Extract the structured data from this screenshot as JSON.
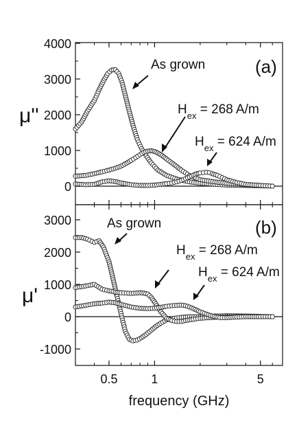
{
  "figure": {
    "xlabel": "frequency (GHz)",
    "xticks": [
      "0.5",
      "1",
      "5"
    ]
  },
  "chart_data": [
    {
      "type": "scatter",
      "panel_label": "(a)",
      "ylabel": "μ''",
      "x_scale": "log",
      "xlim": [
        0.3,
        7
      ],
      "ylim": [
        -500,
        4000
      ],
      "yticks": [
        0,
        1000,
        2000,
        3000,
        4000
      ],
      "ytick_labels": [
        "0",
        "1000",
        "2000",
        "3000",
        "4000"
      ],
      "zero_line": true,
      "annotations": [
        {
          "text": "As grown",
          "sub": ""
        },
        {
          "text": "H",
          "sub": "ex",
          "suffix": " = 268 A/m"
        },
        {
          "text": "H",
          "sub": "ex",
          "suffix": " = 624 A/m"
        }
      ],
      "series": [
        {
          "x": [
            0.3,
            0.33,
            0.36,
            0.4,
            0.43,
            0.46,
            0.49,
            0.52,
            0.55,
            0.58,
            0.61,
            0.64,
            0.68,
            0.72,
            0.77,
            0.82,
            0.88,
            0.95,
            1.05,
            1.2,
            1.4,
            1.7,
            2.0,
            2.5,
            3.0,
            4.0,
            5.0,
            6.0
          ],
          "y": [
            1600,
            1800,
            2100,
            2400,
            2700,
            2950,
            3150,
            3250,
            3260,
            3150,
            2900,
            2550,
            2100,
            1700,
            1300,
            1050,
            850,
            650,
            450,
            300,
            200,
            120,
            80,
            50,
            30,
            20,
            10,
            0
          ]
        },
        {
          "x": [
            0.3,
            0.35,
            0.4,
            0.45,
            0.5,
            0.55,
            0.6,
            0.65,
            0.7,
            0.75,
            0.8,
            0.85,
            0.9,
            0.95,
            1.0,
            1.05,
            1.1,
            1.15,
            1.2,
            1.3,
            1.4,
            1.5,
            1.7,
            2.0,
            2.5,
            3.0,
            4.0,
            5.0,
            6.0
          ],
          "y": [
            280,
            300,
            350,
            400,
            450,
            500,
            560,
            640,
            720,
            800,
            880,
            950,
            980,
            990,
            970,
            930,
            880,
            820,
            760,
            650,
            550,
            450,
            300,
            180,
            120,
            80,
            40,
            20,
            0
          ]
        },
        {
          "x": [
            0.3,
            0.35,
            0.4,
            0.45,
            0.5,
            0.55,
            0.6,
            0.7,
            0.8,
            0.9,
            1.0,
            1.1,
            1.2,
            1.3,
            1.4,
            1.5,
            1.6,
            1.7,
            1.8,
            1.9,
            2.0,
            2.1,
            2.2,
            2.3,
            2.4,
            2.6,
            2.8,
            3.0,
            3.5,
            4.0,
            5.0,
            6.0
          ],
          "y": [
            60,
            40,
            50,
            120,
            150,
            130,
            90,
            40,
            20,
            20,
            30,
            50,
            70,
            90,
            120,
            160,
            210,
            260,
            310,
            350,
            370,
            380,
            390,
            380,
            350,
            300,
            240,
            180,
            100,
            50,
            20,
            0
          ]
        }
      ]
    },
    {
      "type": "scatter",
      "panel_label": "(b)",
      "ylabel": "μ'",
      "x_scale": "log",
      "xlim": [
        0.3,
        7
      ],
      "ylim": [
        -1500,
        3500
      ],
      "yticks": [
        -1000,
        0,
        1000,
        2000,
        3000
      ],
      "ytick_labels": [
        "-1000",
        "0",
        "1000",
        "2000",
        "3000"
      ],
      "zero_line": true,
      "annotations": [
        {
          "text": "As grown",
          "sub": ""
        },
        {
          "text": "H",
          "sub": "ex",
          "suffix": " = 268 A/m"
        },
        {
          "text": "H",
          "sub": "ex",
          "suffix": " = 624 A/m"
        }
      ],
      "series": [
        {
          "x": [
            0.3,
            0.33,
            0.36,
            0.4,
            0.43,
            0.46,
            0.5,
            0.53,
            0.56,
            0.6,
            0.64,
            0.68,
            0.72,
            0.77,
            0.82,
            0.88,
            0.95,
            1.02,
            1.1,
            1.2,
            1.35,
            1.5,
            1.7,
            2.0,
            2.5,
            3.0,
            4.0,
            5.0,
            6.0
          ],
          "y": [
            2450,
            2450,
            2400,
            2300,
            2350,
            2150,
            1700,
            1200,
            700,
            100,
            -450,
            -700,
            -750,
            -720,
            -650,
            -550,
            -420,
            -300,
            -200,
            -100,
            -50,
            -20,
            0,
            0,
            20,
            30,
            20,
            10,
            0
          ]
        },
        {
          "x": [
            0.3,
            0.35,
            0.4,
            0.45,
            0.5,
            0.55,
            0.6,
            0.65,
            0.7,
            0.75,
            0.8,
            0.85,
            0.9,
            0.95,
            1.0,
            1.05,
            1.1,
            1.2,
            1.3,
            1.4,
            1.5,
            1.6,
            1.8,
            2.0,
            2.5,
            3.0,
            4.0,
            5.0,
            6.0
          ],
          "y": [
            900,
            950,
            1000,
            850,
            800,
            760,
            740,
            730,
            720,
            730,
            740,
            730,
            700,
            600,
            450,
            300,
            150,
            -50,
            -120,
            -150,
            -150,
            -120,
            -80,
            -50,
            -20,
            -10,
            0,
            0,
            0
          ]
        },
        {
          "x": [
            0.3,
            0.35,
            0.4,
            0.45,
            0.5,
            0.55,
            0.6,
            0.7,
            0.8,
            0.9,
            1.0,
            1.1,
            1.2,
            1.3,
            1.4,
            1.5,
            1.6,
            1.7,
            1.8,
            1.9,
            2.0,
            2.2,
            2.4,
            2.7,
            3.0,
            3.5,
            4.0,
            5.0,
            6.0
          ],
          "y": [
            300,
            350,
            400,
            420,
            450,
            430,
            380,
            300,
            260,
            250,
            260,
            290,
            320,
            340,
            350,
            360,
            340,
            300,
            250,
            200,
            150,
            80,
            20,
            -30,
            -30,
            -10,
            0,
            0,
            0
          ]
        }
      ]
    }
  ]
}
